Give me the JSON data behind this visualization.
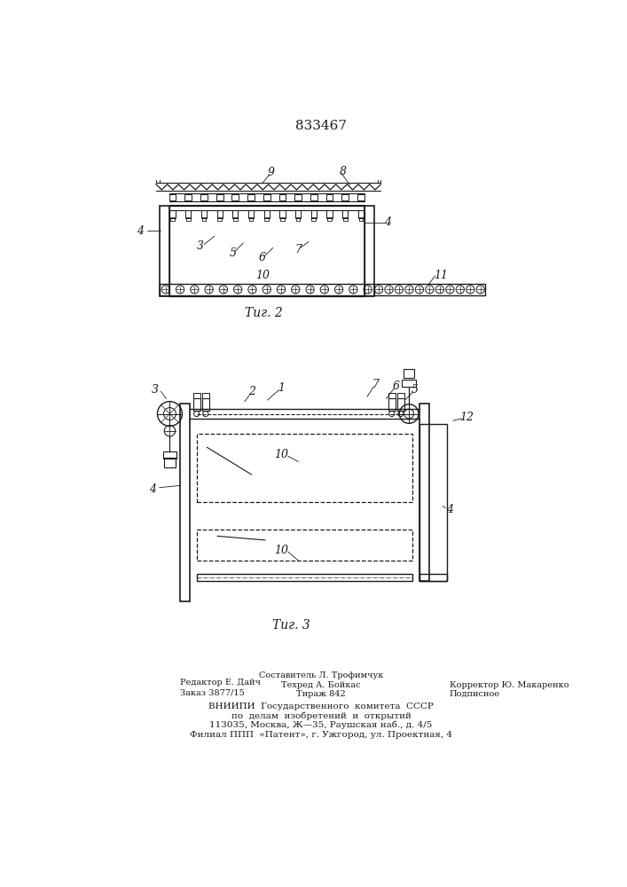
{
  "title_number": "833467",
  "fig2_caption": "Τиг. 2",
  "fig3_caption": "Τиг. 3",
  "bg_color": "#ffffff",
  "line_color": "#1a1a1a"
}
